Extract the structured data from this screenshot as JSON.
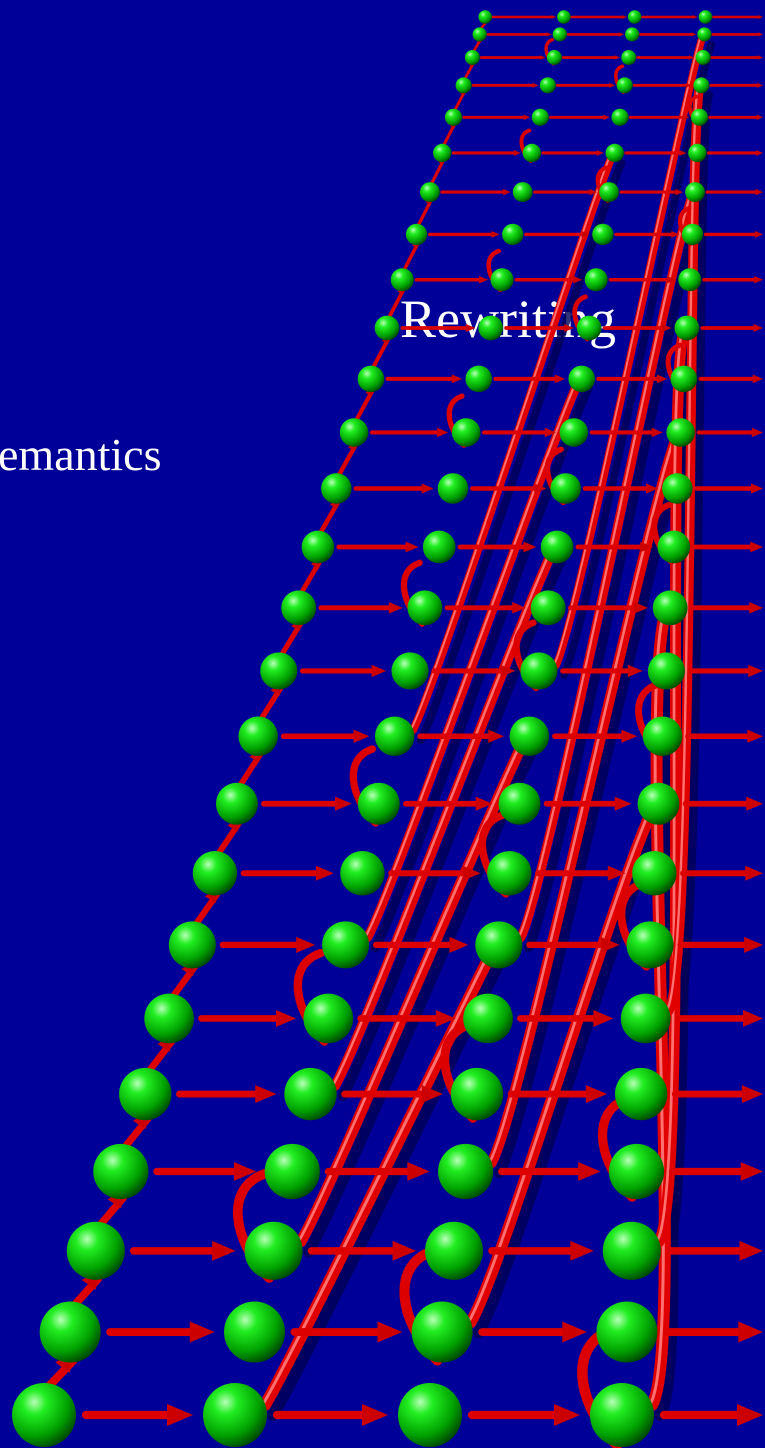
{
  "slide": {
    "title_fragment": "Rewriting",
    "subtitle_fragment": "emantics",
    "background_color": "#000099"
  },
  "illustration": {
    "description_icon": "rewrite-graph-icon",
    "node_color": "#00cc00",
    "arrow_color": "#e00000"
  }
}
